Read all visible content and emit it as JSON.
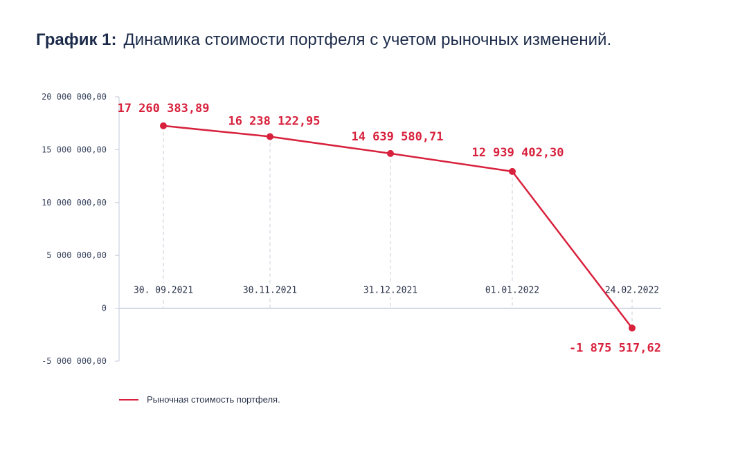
{
  "title": {
    "prefix": "График 1:",
    "text": "Динамика стоимости портфеля с учетом рыночных изменений."
  },
  "colors": {
    "series": "#d8213c",
    "axis": "#c4cadb",
    "text": "#1c2b4a"
  },
  "chart_data": {
    "type": "line",
    "categories": [
      "30. 09.2021",
      "30.11.2021",
      "31.12.2021",
      "01.01.2022",
      "24.02.2022"
    ],
    "series": [
      {
        "name": "Рыночная стоимость портфеля.",
        "values": [
          17260383.89,
          16238122.95,
          14639580.71,
          12939402.3,
          -1875517.62
        ],
        "labels": [
          "17 260 383,89",
          "16 238 122,95",
          "14 639 580,71",
          "12 939 402,30",
          "-1 875 517,62"
        ]
      }
    ],
    "ylim": [
      -5000000,
      20000000
    ],
    "yticks": [
      {
        "value": 20000000,
        "label": "20 000 000,00"
      },
      {
        "value": 15000000,
        "label": "15 000 000,00"
      },
      {
        "value": 10000000,
        "label": "10 000 000,00"
      },
      {
        "value": 5000000,
        "label": "5 000 000,00"
      },
      {
        "value": 0,
        "label": "0"
      },
      {
        "value": -5000000,
        "label": "-5 000 000,00"
      }
    ],
    "xlabel": "",
    "ylabel": "",
    "legend": "bottom-left"
  }
}
